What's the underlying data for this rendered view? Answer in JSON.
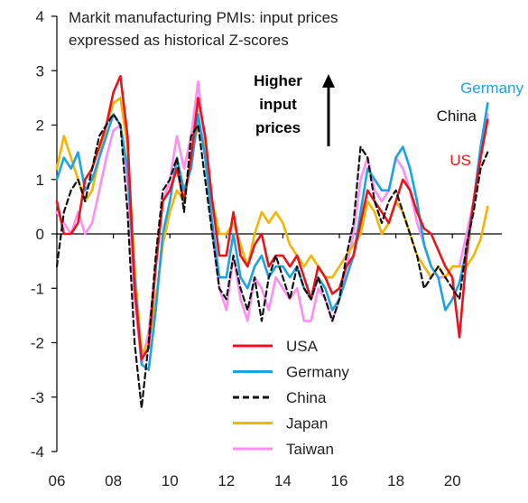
{
  "chart_data": {
    "type": "line",
    "title_lines": [
      "Markit manufacturing PMIs: input prices",
      "expressed as historical Z-scores"
    ],
    "xlabel": "",
    "ylabel": "",
    "xlim": [
      2006,
      2021.75
    ],
    "ylim": [
      -4,
      4
    ],
    "x_ticks": [
      2006,
      2008,
      2010,
      2012,
      2014,
      2016,
      2018,
      2020
    ],
    "x_tick_labels": [
      "06",
      "08",
      "10",
      "12",
      "14",
      "16",
      "18",
      "20"
    ],
    "y_ticks": [
      -4,
      -3,
      -2,
      -1,
      0,
      1,
      2,
      3,
      4
    ],
    "y_tick_labels": [
      "-4",
      "-3",
      "-2",
      "-1",
      "0",
      "1",
      "2",
      "3",
      "4"
    ],
    "grid": false,
    "legend_position": "bottom-center",
    "annotation_lines": [
      "Higher",
      "input",
      "prices"
    ],
    "series": [
      {
        "name": "USA",
        "color": "#e8141b",
        "dash": "solid",
        "end_label": "US",
        "x": [
          2006.0,
          2006.25,
          2006.5,
          2006.75,
          2007.0,
          2007.25,
          2007.5,
          2007.75,
          2008.0,
          2008.25,
          2008.5,
          2008.75,
          2009.0,
          2009.25,
          2009.5,
          2009.75,
          2010.0,
          2010.25,
          2010.5,
          2010.75,
          2011.0,
          2011.25,
          2011.5,
          2011.75,
          2012.0,
          2012.25,
          2012.5,
          2012.75,
          2013.0,
          2013.25,
          2013.5,
          2013.75,
          2014.0,
          2014.25,
          2014.5,
          2014.75,
          2015.0,
          2015.25,
          2015.5,
          2015.75,
          2016.0,
          2016.25,
          2016.5,
          2016.75,
          2017.0,
          2017.25,
          2017.5,
          2017.75,
          2018.0,
          2018.25,
          2018.5,
          2018.75,
          2019.0,
          2019.25,
          2019.5,
          2019.75,
          2020.0,
          2020.25,
          2020.5,
          2020.75,
          2021.0,
          2021.25
        ],
        "y": [
          0.6,
          0.0,
          0.0,
          0.2,
          1.0,
          1.2,
          1.6,
          2.0,
          2.6,
          2.9,
          1.8,
          -1.0,
          -2.3,
          -2.1,
          -0.6,
          0.6,
          0.8,
          1.2,
          0.6,
          1.4,
          2.5,
          1.8,
          0.6,
          -0.4,
          -0.4,
          0.4,
          -0.4,
          -0.6,
          -0.2,
          0.0,
          -0.6,
          -0.4,
          -0.4,
          -0.6,
          -0.4,
          -0.8,
          -1.2,
          -0.6,
          -0.8,
          -1.1,
          -1.0,
          -0.6,
          -0.4,
          0.2,
          0.8,
          0.6,
          0.4,
          0.2,
          0.6,
          1.0,
          0.8,
          0.4,
          0.1,
          0.0,
          -0.3,
          -0.6,
          -0.8,
          -1.9,
          -0.4,
          0.6,
          1.4,
          2.1
        ]
      },
      {
        "name": "Germany",
        "color": "#1aa3e3",
        "dash": "solid",
        "end_label": "Germany",
        "x": [
          2006.0,
          2006.25,
          2006.5,
          2006.75,
          2007.0,
          2007.25,
          2007.5,
          2007.75,
          2008.0,
          2008.25,
          2008.5,
          2008.75,
          2009.0,
          2009.25,
          2009.5,
          2009.75,
          2010.0,
          2010.25,
          2010.5,
          2010.75,
          2011.0,
          2011.25,
          2011.5,
          2011.75,
          2012.0,
          2012.25,
          2012.5,
          2012.75,
          2013.0,
          2013.25,
          2013.5,
          2013.75,
          2014.0,
          2014.25,
          2014.5,
          2014.75,
          2015.0,
          2015.25,
          2015.5,
          2015.75,
          2016.0,
          2016.25,
          2016.5,
          2016.75,
          2017.0,
          2017.25,
          2017.5,
          2017.75,
          2018.0,
          2018.25,
          2018.5,
          2018.75,
          2019.0,
          2019.25,
          2019.5,
          2019.75,
          2020.0,
          2020.25,
          2020.5,
          2020.75,
          2021.0,
          2021.25
        ],
        "y": [
          1.0,
          1.4,
          1.2,
          1.5,
          0.8,
          1.0,
          1.4,
          1.8,
          2.2,
          2.0,
          1.2,
          -0.8,
          -2.4,
          -2.5,
          -1.4,
          0.0,
          0.6,
          1.4,
          0.8,
          1.2,
          2.2,
          1.4,
          0.2,
          -0.8,
          -0.8,
          0.0,
          -0.8,
          -1.0,
          -0.6,
          -0.4,
          -0.8,
          -0.6,
          -0.6,
          -0.8,
          -0.6,
          -1.0,
          -1.2,
          -0.8,
          -1.0,
          -1.4,
          -1.2,
          -0.8,
          -0.4,
          0.4,
          1.2,
          1.0,
          0.8,
          0.8,
          1.4,
          1.6,
          1.2,
          0.6,
          -0.2,
          -0.6,
          -0.8,
          -1.4,
          -1.2,
          -0.9,
          -0.3,
          0.6,
          1.6,
          2.4
        ]
      },
      {
        "name": "China",
        "color": "#111111",
        "dash": "dashed",
        "end_label": "China",
        "x": [
          2006.0,
          2006.25,
          2006.5,
          2006.75,
          2007.0,
          2007.25,
          2007.5,
          2007.75,
          2008.0,
          2008.25,
          2008.5,
          2008.75,
          2009.0,
          2009.25,
          2009.5,
          2009.75,
          2010.0,
          2010.25,
          2010.5,
          2010.75,
          2011.0,
          2011.25,
          2011.5,
          2011.75,
          2012.0,
          2012.25,
          2012.5,
          2012.75,
          2013.0,
          2013.25,
          2013.5,
          2013.75,
          2014.0,
          2014.25,
          2014.5,
          2014.75,
          2015.0,
          2015.25,
          2015.5,
          2015.75,
          2016.0,
          2016.25,
          2016.5,
          2016.75,
          2017.0,
          2017.25,
          2017.5,
          2017.75,
          2018.0,
          2018.25,
          2018.5,
          2018.75,
          2019.0,
          2019.25,
          2019.5,
          2019.75,
          2020.0,
          2020.25,
          2020.5,
          2020.75,
          2021.0,
          2021.25
        ],
        "y": [
          -0.6,
          0.4,
          0.8,
          1.0,
          0.6,
          1.2,
          1.8,
          2.0,
          2.2,
          2.0,
          0.4,
          -2.0,
          -3.2,
          -2.0,
          -0.4,
          0.8,
          1.0,
          1.4,
          0.4,
          1.8,
          2.0,
          1.0,
          0.0,
          -1.0,
          -1.2,
          -0.4,
          -1.0,
          -1.4,
          -0.8,
          -1.6,
          -0.8,
          -0.4,
          -0.8,
          -1.2,
          -0.6,
          -1.0,
          -1.2,
          -0.8,
          -1.2,
          -1.6,
          -1.2,
          -0.4,
          0.2,
          1.6,
          1.4,
          0.6,
          0.2,
          0.6,
          0.8,
          0.4,
          0.0,
          -0.4,
          -1.0,
          -0.8,
          -0.6,
          -0.8,
          -1.0,
          -1.2,
          -0.2,
          0.4,
          1.2,
          1.5
        ]
      },
      {
        "name": "Japan",
        "color": "#f5b400",
        "dash": "solid",
        "end_label": "",
        "x": [
          2006.0,
          2006.25,
          2006.5,
          2006.75,
          2007.0,
          2007.25,
          2007.5,
          2007.75,
          2008.0,
          2008.25,
          2008.5,
          2008.75,
          2009.0,
          2009.25,
          2009.5,
          2009.75,
          2010.0,
          2010.25,
          2010.5,
          2010.75,
          2011.0,
          2011.25,
          2011.5,
          2011.75,
          2012.0,
          2012.25,
          2012.5,
          2012.75,
          2013.0,
          2013.25,
          2013.5,
          2013.75,
          2014.0,
          2014.25,
          2014.5,
          2014.75,
          2015.0,
          2015.25,
          2015.5,
          2015.75,
          2016.0,
          2016.25,
          2016.5,
          2016.75,
          2017.0,
          2017.25,
          2017.5,
          2017.75,
          2018.0,
          2018.25,
          2018.5,
          2018.75,
          2019.0,
          2019.25,
          2019.5,
          2019.75,
          2020.0,
          2020.25,
          2020.5,
          2020.75,
          2021.0,
          2021.25
        ],
        "y": [
          1.2,
          1.8,
          1.4,
          1.0,
          0.6,
          0.8,
          1.4,
          2.0,
          2.4,
          2.5,
          1.6,
          -0.6,
          -2.2,
          -2.0,
          -1.2,
          -0.2,
          0.4,
          0.8,
          0.6,
          1.4,
          2.0,
          1.6,
          0.6,
          0.0,
          0.0,
          0.2,
          -0.2,
          -0.6,
          0.0,
          0.4,
          0.2,
          0.4,
          0.2,
          -0.2,
          -0.4,
          -0.6,
          -0.4,
          -0.6,
          -0.8,
          -0.8,
          -0.6,
          -0.4,
          -0.2,
          0.0,
          0.6,
          0.4,
          0.0,
          0.2,
          0.6,
          0.4,
          0.0,
          -0.4,
          -0.6,
          -0.8,
          -0.6,
          -0.8,
          -0.6,
          -0.6,
          -0.6,
          -0.4,
          -0.1,
          0.5
        ]
      },
      {
        "name": "Taiwan",
        "color": "#ff8ef0",
        "dash": "solid",
        "end_label": "",
        "x": [
          2006.0,
          2006.25,
          2006.5,
          2006.75,
          2007.0,
          2007.25,
          2007.5,
          2007.75,
          2008.0,
          2008.25,
          2008.5,
          2008.75,
          2009.0,
          2009.25,
          2009.5,
          2009.75,
          2010.0,
          2010.25,
          2010.5,
          2010.75,
          2011.0,
          2011.25,
          2011.5,
          2011.75,
          2012.0,
          2012.25,
          2012.5,
          2012.75,
          2013.0,
          2013.25,
          2013.5,
          2013.75,
          2014.0,
          2014.25,
          2014.5,
          2014.75,
          2015.0,
          2015.25,
          2015.5,
          2015.75,
          2016.0,
          2016.25,
          2016.5,
          2016.75,
          2017.0,
          2017.25,
          2017.5,
          2017.75,
          2018.0,
          2018.25,
          2018.5,
          2018.75,
          2019.0,
          2019.25,
          2019.5,
          2019.75,
          2020.0,
          2020.25,
          2020.5,
          2020.75,
          2021.0,
          2021.25
        ],
        "y": [
          0.4,
          0.2,
          0.0,
          0.4,
          0.0,
          0.2,
          0.8,
          1.4,
          1.9,
          2.0,
          1.0,
          -1.2,
          -2.4,
          -1.8,
          -0.6,
          0.6,
          1.0,
          1.8,
          1.2,
          1.8,
          2.8,
          1.6,
          0.0,
          -1.0,
          -1.4,
          -0.4,
          -1.2,
          -1.6,
          -0.8,
          -1.0,
          -1.4,
          -0.8,
          -1.0,
          -1.2,
          -1.0,
          -1.6,
          -1.6,
          -1.0,
          -1.2,
          -1.6,
          -1.2,
          -0.6,
          0.0,
          1.0,
          1.4,
          0.8,
          0.6,
          0.8,
          1.4,
          1.2,
          0.8,
          0.2,
          -0.2,
          -0.6,
          -0.8,
          -0.8,
          -0.6,
          -0.6,
          0.0,
          0.6,
          1.4,
          2.2
        ]
      }
    ]
  }
}
